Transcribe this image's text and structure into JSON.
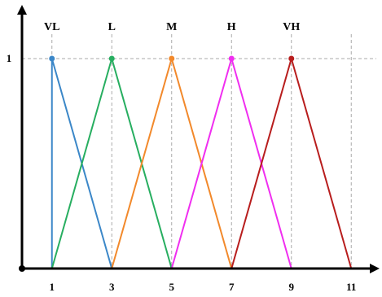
{
  "chart_data": {
    "type": "line",
    "title": "",
    "xlabel": "",
    "ylabel": "",
    "xlim": [
      0,
      12
    ],
    "ylim": [
      0,
      1.1
    ],
    "x_ticks": [
      "1",
      "3",
      "5",
      "7",
      "9",
      "11"
    ],
    "y_ticks": [
      "1"
    ],
    "grid": "dashed at ticks",
    "series": [
      {
        "name": "VL",
        "color": "#3b87c8",
        "x": [
          1,
          1,
          3
        ],
        "y": [
          0,
          1,
          0
        ],
        "peak": [
          1,
          1
        ]
      },
      {
        "name": "L",
        "color": "#27ae60",
        "x": [
          1,
          3,
          5
        ],
        "y": [
          0,
          1,
          0
        ],
        "peak": [
          3,
          1
        ]
      },
      {
        "name": "M",
        "color": "#f2892b",
        "x": [
          3,
          5,
          7
        ],
        "y": [
          0,
          1,
          0
        ],
        "peak": [
          5,
          1
        ]
      },
      {
        "name": "H",
        "color": "#f02ef0",
        "x": [
          5,
          7,
          9
        ],
        "y": [
          0,
          1,
          0
        ],
        "peak": [
          7,
          1
        ]
      },
      {
        "name": "VH",
        "color": "#b81d1d",
        "x": [
          7,
          9,
          11
        ],
        "y": [
          0,
          1,
          0
        ],
        "peak": [
          9,
          1
        ]
      }
    ]
  }
}
